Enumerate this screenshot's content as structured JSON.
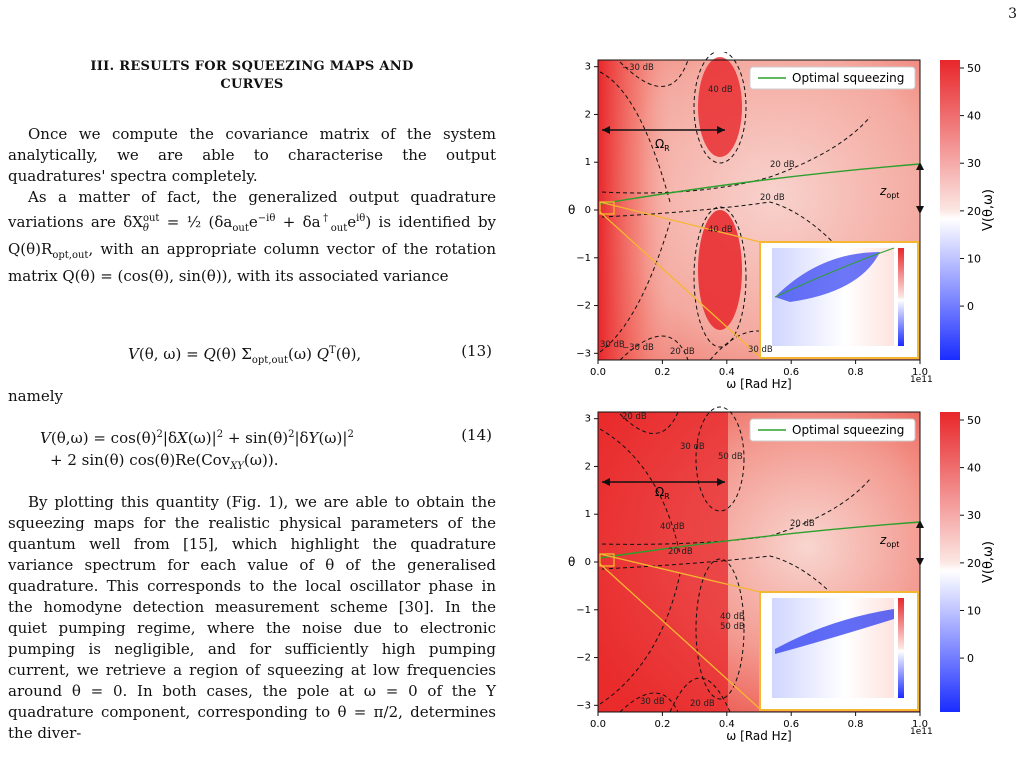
{
  "page_number": "3",
  "section": {
    "title_line1": "III.   RESULTS FOR SQUEEZING MAPS AND",
    "title_line2": "CURVES"
  },
  "paragraphs": {
    "p1": "Once we compute the covariance matrix of the system analytically, we are able to characterise the output quadratures' spectra completely.",
    "p2_start": "As a matter of fact, the generalized output quadrature variations are δX",
    "p2_end": "is identified by Q(θ)R",
    "p2_tail": ", with an appropriate column vector of the rotation matrix Q(θ) = (cos(θ), sin(θ)), with its associated variance",
    "namely": "namely",
    "p3": "By plotting this quantity (Fig. 1), we are able to obtain the squeezing maps for the realistic physical parameters of the quantum well from [15], which highlight the quadrature variance spectrum for each value of θ of the generalised quadrature. This corresponds to the local oscillator phase in the homodyne detection measurement scheme [30]. In the quiet pumping regime, where the noise due to electronic pumping is negligible, and for sufficiently high pumping current, we retrieve a region of squeezing at low frequencies around θ = 0. In both cases, the pole at ω = 0 of the Y quadrature component, corresponding to θ = π/2, determines the diver-"
  },
  "equations": {
    "eq13_num": "(13)",
    "eq14_num": "(14)"
  },
  "chart_data": [
    {
      "type": "heatmap",
      "xlabel": "ω [Rad Hz]",
      "ylabel": "θ",
      "x_scale_label": "1e11",
      "x_ticks": [
        "0.0",
        "0.2",
        "0.4",
        "0.6",
        "0.8",
        "1.0"
      ],
      "y_ticks": [
        "−3",
        "−2",
        "−1",
        "0",
        "1",
        "2",
        "3"
      ],
      "xlim": [
        0,
        1.0
      ],
      "ylim": [
        -3.14,
        3.14
      ],
      "colorbar_label": "V(θ,ω)",
      "colorbar_ticks": [
        "50",
        "40",
        "30",
        "20",
        "10",
        "0"
      ],
      "legend": "Optimal squeezing",
      "annotations": {
        "omega_r": "Ω",
        "omega_r_sub": "R",
        "z_opt": "z",
        "z_opt_sub": "opt"
      },
      "contour_labels": [
        "−30 dB",
        "40 dB",
        "20 dB",
        "20 dB",
        "40 dB",
        "−30 dB",
        "20 dB",
        "30 dB",
        "30 dB"
      ]
    },
    {
      "type": "heatmap",
      "xlabel": "ω [Rad Hz]",
      "ylabel": "θ",
      "x_scale_label": "1e11",
      "x_ticks": [
        "0.0",
        "0.2",
        "0.4",
        "0.6",
        "0.8",
        "1.0"
      ],
      "y_ticks": [
        "−3",
        "−2",
        "−1",
        "0",
        "1",
        "2",
        "3"
      ],
      "xlim": [
        0,
        1.0
      ],
      "ylim": [
        -3.14,
        3.14
      ],
      "colorbar_label": "V(θ,ω)",
      "colorbar_ticks": [
        "50",
        "40",
        "30",
        "20",
        "10",
        "0"
      ],
      "legend": "Optimal squeezing",
      "annotations": {
        "omega_r": "Ω",
        "omega_r_sub": "R",
        "z_opt": "z",
        "z_opt_sub": "opt"
      },
      "contour_labels": [
        "20 dB",
        "30 dB",
        "40 dB",
        "50 dB",
        "40 dB",
        "20 dB",
        "20 dB",
        "50 dB",
        "30 dB",
        "20 dB"
      ]
    }
  ],
  "colors": {
    "red": "#e8262a",
    "light": "#f6c9c4",
    "blue": "#1a2cff",
    "legend_line": "#2ca02c",
    "inset_border": "#f5b631"
  }
}
